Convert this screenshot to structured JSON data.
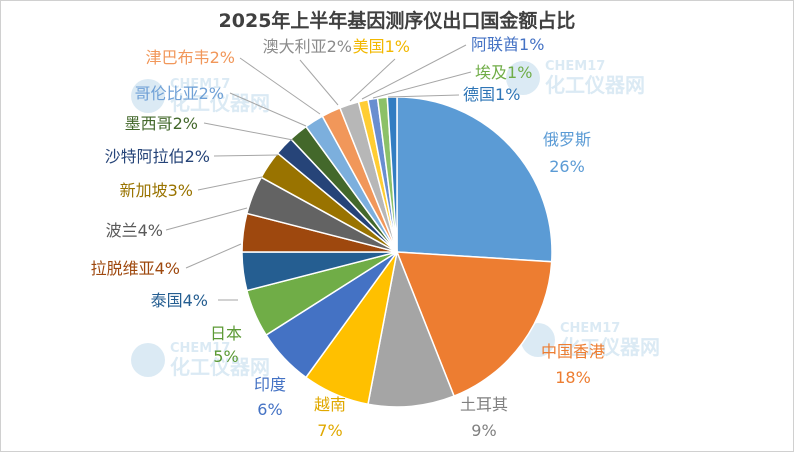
{
  "chart_data": {
    "type": "pie",
    "title": "2025年上半年基因测序仪出口国金额占比",
    "slices": [
      {
        "label": "俄罗斯",
        "value": 26,
        "display": "26%",
        "color": "#5B9BD5",
        "text_color": "#5B9BD5"
      },
      {
        "label": "中国香港",
        "value": 18,
        "display": "18%",
        "color": "#ED7D31",
        "text_color": "#ED7D31"
      },
      {
        "label": "土耳其",
        "value": 9,
        "display": "9%",
        "color": "#A5A5A5",
        "text_color": "#808080"
      },
      {
        "label": "越南",
        "value": 7,
        "display": "7%",
        "color": "#FFC000",
        "text_color": "#E0A800"
      },
      {
        "label": "印度",
        "value": 6,
        "display": "6%",
        "color": "#4472C4",
        "text_color": "#4472C4"
      },
      {
        "label": "日本",
        "value": 5,
        "display": "5%",
        "color": "#70AD47",
        "text_color": "#5C9A35"
      },
      {
        "label": "泰国",
        "value": 4,
        "display": "4%",
        "color": "#255E91",
        "text_color": "#255E91"
      },
      {
        "label": "拉脱维亚",
        "value": 4,
        "display": "4%",
        "color": "#9E480E",
        "text_color": "#9E480E"
      },
      {
        "label": "波兰",
        "value": 4,
        "display": "4%",
        "color": "#636363",
        "text_color": "#595959"
      },
      {
        "label": "新加坡",
        "value": 3,
        "display": "3%",
        "color": "#997300",
        "text_color": "#997300"
      },
      {
        "label": "沙特阿拉伯",
        "value": 2,
        "display": "2%",
        "color": "#264478",
        "text_color": "#264478"
      },
      {
        "label": "墨西哥",
        "value": 2,
        "display": "2%",
        "color": "#43682B",
        "text_color": "#43682B"
      },
      {
        "label": "哥伦比亚",
        "value": 2,
        "display": "2%",
        "color": "#7CAFDD",
        "text_color": "#6FA0D6"
      },
      {
        "label": "津巴布韦",
        "value": 2,
        "display": "2%",
        "color": "#F1975A",
        "text_color": "#F1975A"
      },
      {
        "label": "澳大利亚",
        "value": 2,
        "display": "2%",
        "color": "#B7B7B7",
        "text_color": "#8C8C8C"
      },
      {
        "label": "美国",
        "value": 1,
        "display": "1%",
        "color": "#FFCD33",
        "text_color": "#F2B800"
      },
      {
        "label": "阿联酋",
        "value": 1,
        "display": "1%",
        "color": "#698ED0",
        "text_color": "#4472C4"
      },
      {
        "label": "埃及",
        "value": 1,
        "display": "1%",
        "color": "#8CC168",
        "text_color": "#70AD47"
      },
      {
        "label": "德国",
        "value": 1,
        "display": "1%",
        "color": "#327DC2",
        "text_color": "#2E75B6"
      }
    ]
  },
  "watermark": {
    "brand": "CHEM17",
    "name": "化工仪器网"
  }
}
